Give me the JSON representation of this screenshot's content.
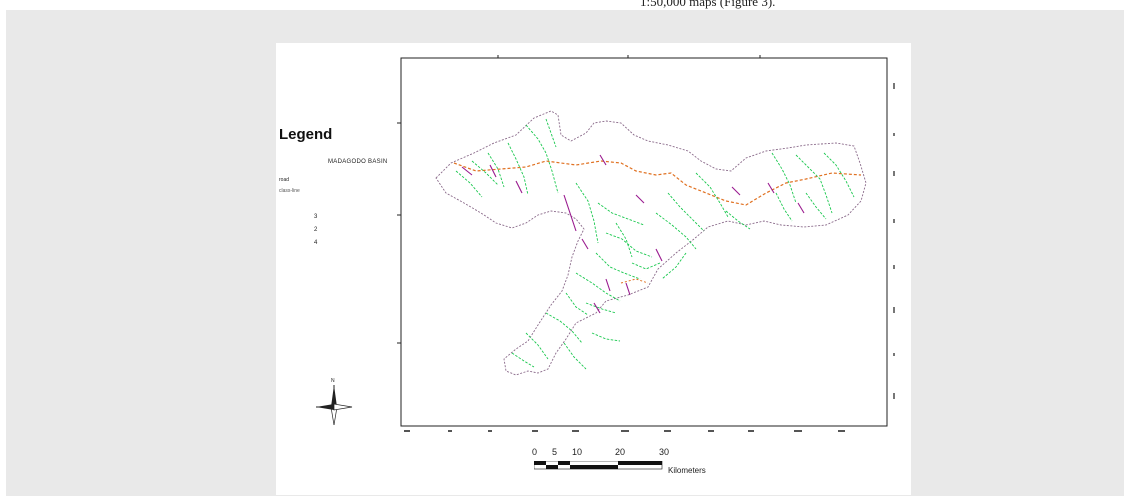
{
  "caption": {
    "text": "1:50,000 maps (Figure 3)."
  },
  "legend": {
    "title": "Legend",
    "basin_label": "MADAGODO BASIN",
    "road_label": "road",
    "class_label": "class-line",
    "items": [
      {
        "label": "3",
        "color": "#19c84e"
      },
      {
        "label": "2",
        "color": "#9a1b8f"
      },
      {
        "label": "4",
        "color": "#e07020"
      }
    ]
  },
  "north_arrow": {
    "label": "N"
  },
  "scale_bar": {
    "ticks": [
      "0",
      "5",
      "10",
      "20",
      "30"
    ],
    "unit": "Kilometers"
  },
  "colors": {
    "panel_bg": "#e9e9e9",
    "basin_outline": "#8a6a8a",
    "stream_green": "#19c84e",
    "stream_purple": "#9a1b8f",
    "stream_orange": "#e07020"
  }
}
